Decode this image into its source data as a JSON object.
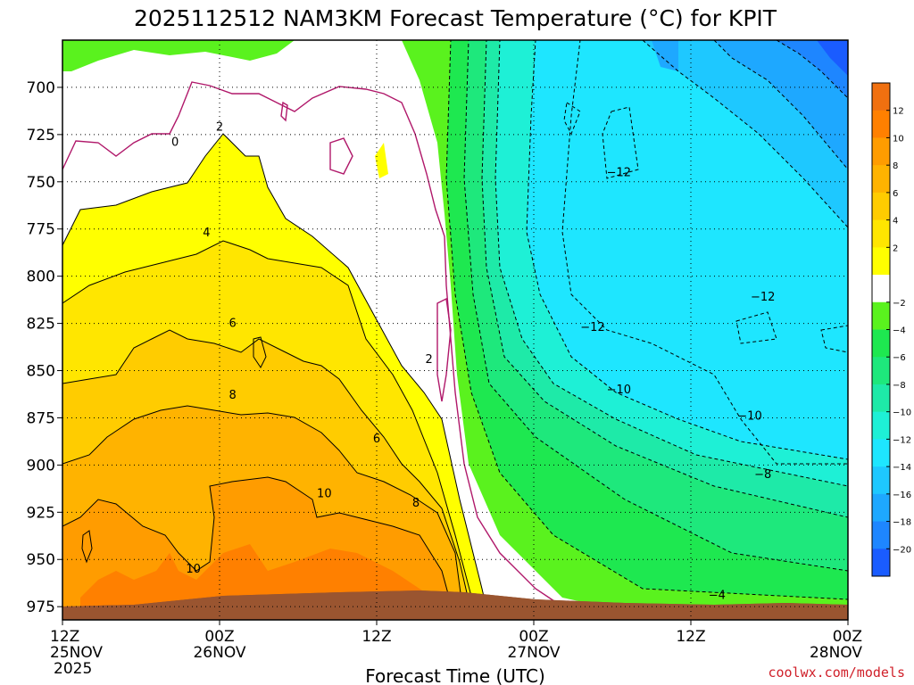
{
  "chart_data": {
    "type": "heatmap",
    "title": "2025112512 NAM3KM Forecast Temperature (°C) for KPIT",
    "xlabel": "Forecast Time (UTC)",
    "ylabel": "",
    "x_ticks": [
      {
        "hour": 0,
        "time": "12Z",
        "date": "25NOV",
        "year": "2025"
      },
      {
        "hour": 12,
        "time": "00Z",
        "date": "26NOV",
        "year": ""
      },
      {
        "hour": 24,
        "time": "12Z",
        "date": "",
        "year": ""
      },
      {
        "hour": 36,
        "time": "00Z",
        "date": "27NOV",
        "year": ""
      },
      {
        "hour": 48,
        "time": "12Z",
        "date": "",
        "year": ""
      },
      {
        "hour": 60,
        "time": "00Z",
        "date": "28NOV",
        "year": ""
      }
    ],
    "xlim": [
      0,
      60
    ],
    "y_ticks": [
      700,
      725,
      750,
      775,
      800,
      825,
      850,
      875,
      900,
      925,
      950,
      975
    ],
    "ylim": [
      675,
      982
    ],
    "grid": true,
    "colorbar": {
      "placement": "right",
      "colors": [
        "#1a5cff",
        "#1e86ff",
        "#1ea8ff",
        "#1ec8ff",
        "#1ee6ff",
        "#1ef0d6",
        "#1eeaa8",
        "#1ee87c",
        "#1ee850",
        "#5af21e",
        "#ffffff",
        "#ffff00",
        "#ffe600",
        "#ffcc00",
        "#ffb300",
        "#ff9c00",
        "#ff8000",
        "#f07010"
      ],
      "labels": [
        "−20",
        "−18",
        "−16",
        "−14",
        "−12",
        "−10",
        "−8",
        "−6",
        "−4",
        "−2",
        "2",
        "4",
        "6",
        "8",
        "10",
        "12"
      ]
    },
    "contour_labels": [
      {
        "text": "0",
        "hour": 8.6,
        "p": 730
      },
      {
        "text": "2",
        "hour": 12.0,
        "p": 722
      },
      {
        "text": "4",
        "hour": 11.0,
        "p": 778
      },
      {
        "text": "6",
        "hour": 13.0,
        "p": 826
      },
      {
        "text": "8",
        "hour": 13.0,
        "p": 864
      },
      {
        "text": "10",
        "hour": 10.0,
        "p": 956
      },
      {
        "text": "10",
        "hour": 20.0,
        "p": 916
      },
      {
        "text": "6",
        "hour": 24.0,
        "p": 887
      },
      {
        "text": "8",
        "hour": 27.0,
        "p": 921
      },
      {
        "text": "2",
        "hour": 28.0,
        "p": 845
      },
      {
        "text": "−12",
        "hour": 42.5,
        "p": 746
      },
      {
        "text": "−12",
        "hour": 40.5,
        "p": 828
      },
      {
        "text": "−10",
        "hour": 42.5,
        "p": 861
      },
      {
        "text": "−12",
        "hour": 53.5,
        "p": 812
      },
      {
        "text": "−10",
        "hour": 52.5,
        "p": 875
      },
      {
        "text": "−8",
        "hour": 53.5,
        "p": 906
      },
      {
        "text": "−4",
        "hour": 50.0,
        "p": 970
      }
    ],
    "series": [
      {
        "name": "temperature_field_description",
        "values": [
          "warm (8 to 12°C) below 850 hPa before 12Z 26NOV",
          "strong cold front passage near 00Z 27NOV",
          "cold (-10 to -20°C) aloft after 27NOV"
        ]
      }
    ]
  },
  "credit": "coolwx.com/models"
}
